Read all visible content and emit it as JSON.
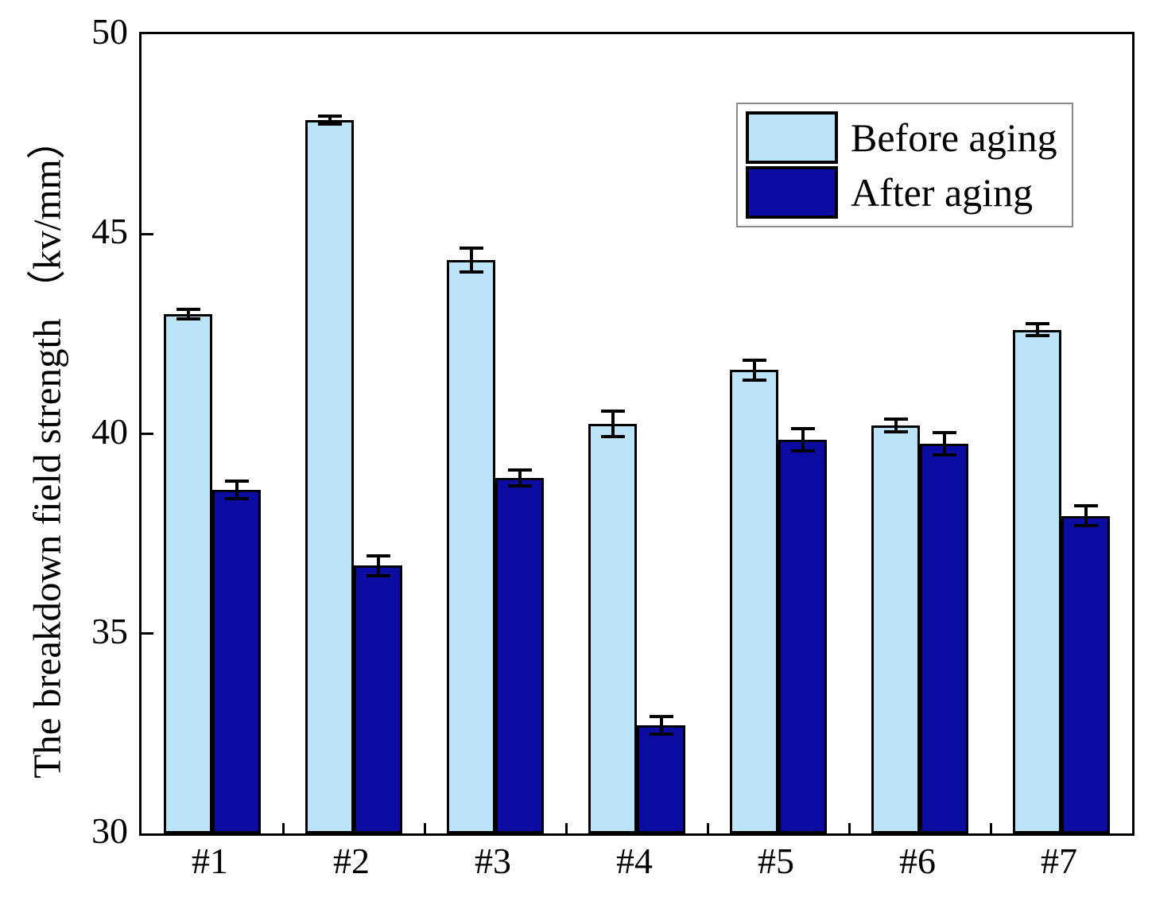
{
  "chart_data": {
    "type": "bar",
    "title": "",
    "ylabel": "The breakdown field strength （kv/mm）",
    "xlabel": "",
    "categories": [
      "#1",
      "#2",
      "#3",
      "#4",
      "#5",
      "#6",
      "#7"
    ],
    "series": [
      {
        "name": "Before aging",
        "color": "#BCE4F8",
        "values": [
          43.0,
          47.85,
          44.35,
          40.25,
          41.6,
          40.2,
          42.6
        ],
        "errors": [
          0.12,
          0.1,
          0.3,
          0.32,
          0.25,
          0.16,
          0.15
        ]
      },
      {
        "name": "After aging",
        "color": "#0C0CA2",
        "values": [
          38.6,
          36.7,
          38.9,
          32.7,
          39.85,
          39.75,
          37.95
        ],
        "errors": [
          0.22,
          0.25,
          0.2,
          0.22,
          0.27,
          0.27,
          0.25
        ]
      }
    ],
    "ylim": [
      30,
      50
    ],
    "yticks": [
      30,
      35,
      40,
      45,
      50
    ],
    "grid": false,
    "legend_position": "top-right",
    "bar_border_color": "#000000",
    "error_bar_color": "#000000",
    "axis_color": "#000000"
  }
}
